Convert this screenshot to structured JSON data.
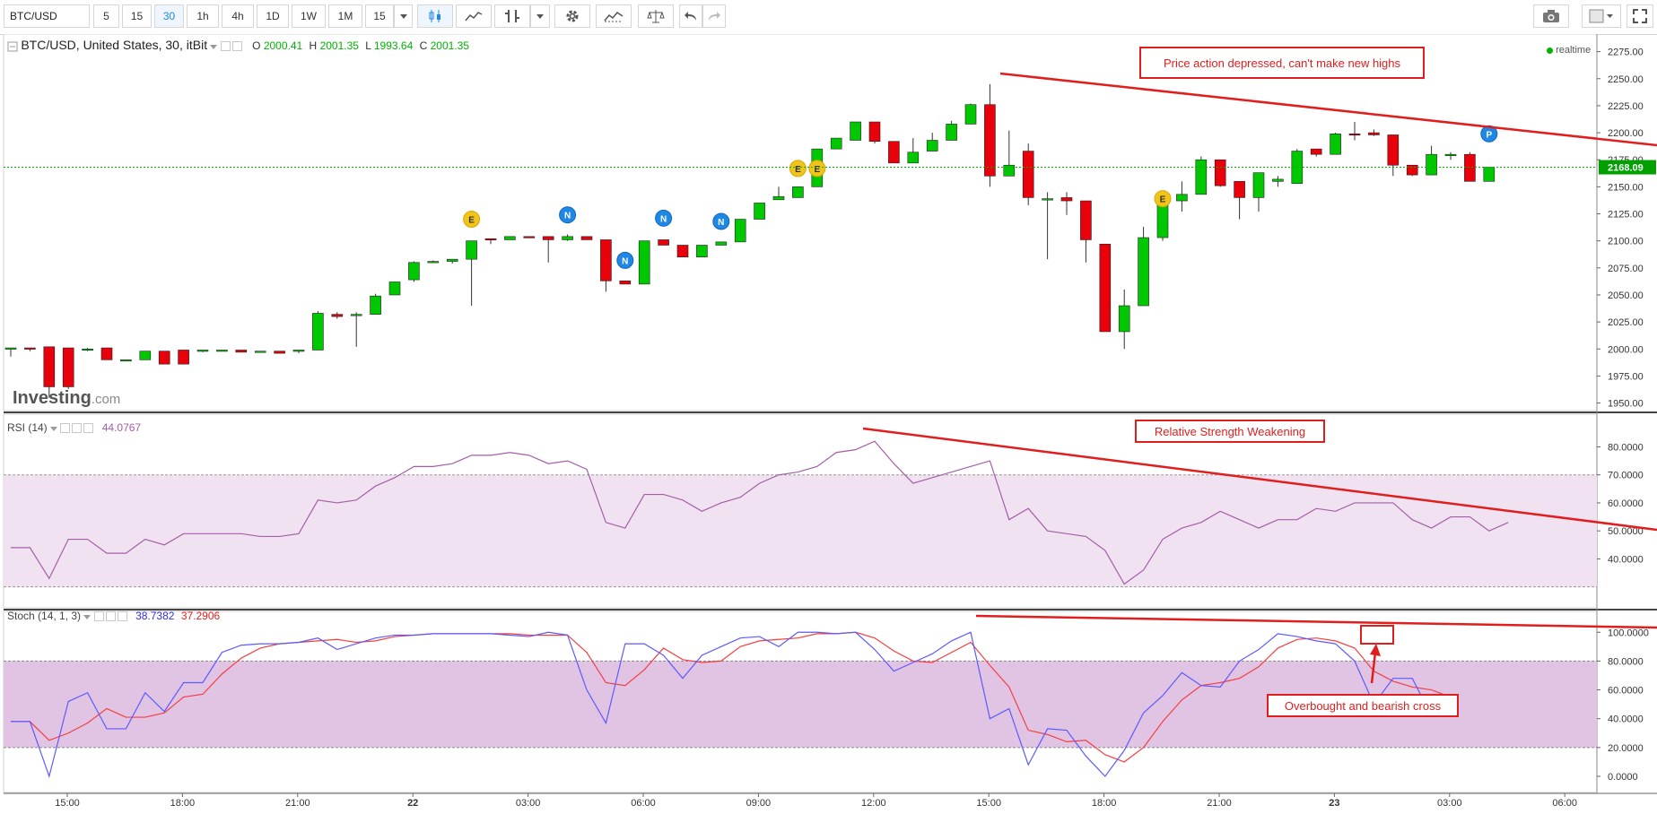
{
  "toolbar": {
    "symbol": "BTC/USD",
    "intervals": [
      "5",
      "15",
      "30",
      "1h",
      "4h",
      "1D",
      "1W",
      "1M",
      "15"
    ],
    "active_interval": "30"
  },
  "header": {
    "title": "BTC/USD, United States, 30, itBit",
    "o_label": "O",
    "o": "2000.41",
    "h_label": "H",
    "h": "2001.35",
    "l_label": "L",
    "l": "1993.64",
    "c_label": "C",
    "c": "2001.35",
    "realtime": "realtime",
    "brand_main": "Investing",
    "brand_suffix": ".com"
  },
  "rsi_legend": {
    "name": "RSI (14)",
    "value": "44.0767"
  },
  "stoch_legend": {
    "name": "Stoch (14, 1, 3)",
    "k": "38.7382",
    "d": "37.2906"
  },
  "annotations": {
    "price": "Price action depressed, can't make new highs",
    "rsi": "Relative Strength Weakening",
    "stoch": "Overbought and bearish cross"
  },
  "colors": {
    "up": "#00c800",
    "down": "#e8000b",
    "accent": "#e01e1e",
    "rsi_line": "#a45ea8",
    "stoch_k": "#5b5bff",
    "stoch_d": "#f24040"
  },
  "chart_data": {
    "type": "candlestick",
    "symbol": "BTC/USD",
    "interval": "30",
    "last_price": "2168.09",
    "x_ticks": [
      "15:00",
      "18:00",
      "21:00",
      "22",
      "03:00",
      "06:00",
      "09:00",
      "12:00",
      "15:00",
      "18:00",
      "21:00",
      "23",
      "03:00",
      "06:00"
    ],
    "price_ticks": [
      "2275.00",
      "2250.00",
      "2225.00",
      "2200.00",
      "2175.00",
      "2150.00",
      "2125.00",
      "2100.00",
      "2075.00",
      "2050.00",
      "2025.00",
      "2000.00",
      "1975.00",
      "1950.00"
    ],
    "price_range": [
      1943,
      2278
    ],
    "candles": [
      [
        2000,
        2001,
        1993,
        2001
      ],
      [
        2001,
        2001,
        1998,
        2000
      ],
      [
        2002,
        2002,
        1955,
        1965
      ],
      [
        2001,
        2001,
        1963,
        1965
      ],
      [
        2000,
        2001,
        1998,
        2000
      ],
      [
        2001,
        2001,
        1990,
        1990
      ],
      [
        1990,
        1990,
        1990,
        1990
      ],
      [
        1990,
        1998,
        1990,
        1998
      ],
      [
        1998,
        1998,
        1986,
        1986
      ],
      [
        1999,
        1999,
        1986,
        1986
      ],
      [
        1999,
        1999,
        1997,
        1999
      ],
      [
        1999,
        1999,
        1998,
        1999
      ],
      [
        1999,
        1999,
        1997,
        1997
      ],
      [
        1997,
        1998,
        1997,
        1998
      ],
      [
        1998,
        1998,
        1996,
        1996
      ],
      [
        1998,
        1998,
        1996,
        1999
      ],
      [
        1999,
        2035,
        1999,
        2033
      ],
      [
        2032,
        2034,
        2028,
        2030
      ],
      [
        2032,
        2034,
        2002,
        2032
      ],
      [
        2032,
        2051,
        2032,
        2049
      ],
      [
        2050,
        2062,
        2050,
        2062
      ],
      [
        2064,
        2081,
        2062,
        2080
      ],
      [
        2080,
        2082,
        2080,
        2081
      ],
      [
        2081,
        2083,
        2079,
        2083
      ],
      [
        2083,
        2100,
        2040,
        2100
      ],
      [
        2102,
        2102,
        2097,
        2101
      ],
      [
        2101,
        2104,
        2101,
        2104
      ],
      [
        2104,
        2104,
        2103,
        2103
      ],
      [
        2104,
        2104,
        2080,
        2101
      ],
      [
        2101,
        2106,
        2100,
        2104
      ],
      [
        2104,
        2104,
        2102,
        2101
      ],
      [
        2101,
        2101,
        2053,
        2063
      ],
      [
        2063,
        2063,
        2060,
        2060
      ],
      [
        2060,
        2100,
        2060,
        2100
      ],
      [
        2101,
        2101,
        2096,
        2096
      ],
      [
        2096,
        2096,
        2085,
        2085
      ],
      [
        2085,
        2096,
        2085,
        2096
      ],
      [
        2096,
        2099,
        2096,
        2099
      ],
      [
        2099,
        2120,
        2099,
        2120
      ],
      [
        2120,
        2135,
        2120,
        2135
      ],
      [
        2138,
        2150,
        2138,
        2141
      ],
      [
        2140,
        2150,
        2140,
        2150
      ],
      [
        2150,
        2185,
        2150,
        2185
      ],
      [
        2185,
        2195,
        2185,
        2195
      ],
      [
        2193,
        2210,
        2193,
        2210
      ],
      [
        2210,
        2210,
        2190,
        2192
      ],
      [
        2192,
        2192,
        2172,
        2172
      ],
      [
        2172,
        2195,
        2172,
        2182
      ],
      [
        2183,
        2200,
        2183,
        2193
      ],
      [
        2193,
        2211,
        2193,
        2208
      ],
      [
        2208,
        2227,
        2208,
        2226
      ],
      [
        2226,
        2245,
        2150,
        2160
      ],
      [
        2160,
        2202,
        2160,
        2170
      ],
      [
        2183,
        2190,
        2133,
        2140
      ],
      [
        2139,
        2145,
        2083,
        2139
      ],
      [
        2140,
        2145,
        2124,
        2137
      ],
      [
        2137,
        2137,
        2080,
        2101
      ],
      [
        2097,
        2097,
        2016,
        2016
      ],
      [
        2016,
        2055,
        2000,
        2040
      ],
      [
        2040,
        2113,
        2040,
        2103
      ],
      [
        2103,
        2143,
        2100,
        2137
      ],
      [
        2137,
        2155,
        2127,
        2143
      ],
      [
        2143,
        2178,
        2143,
        2175
      ],
      [
        2175,
        2175,
        2150,
        2151
      ],
      [
        2155,
        2155,
        2120,
        2140
      ],
      [
        2140,
        2163,
        2127,
        2163
      ],
      [
        2155,
        2160,
        2150,
        2157
      ],
      [
        2153,
        2185,
        2153,
        2183
      ],
      [
        2185,
        2185,
        2178,
        2180
      ],
      [
        2180,
        2200,
        2180,
        2199
      ],
      [
        2199,
        2210,
        2193,
        2198
      ],
      [
        2200,
        2203,
        2197,
        2198
      ],
      [
        2198,
        2198,
        2160,
        2170
      ],
      [
        2170,
        2170,
        2160,
        2161
      ],
      [
        2161,
        2188,
        2161,
        2180
      ],
      [
        2180,
        2182,
        2175,
        2180
      ],
      [
        2180,
        2182,
        2155,
        2155
      ],
      [
        2155,
        2168,
        2155,
        2168
      ]
    ],
    "event_markers": [
      {
        "label": "E",
        "candle": 24,
        "price": 2120
      },
      {
        "label": "N",
        "candle": 29,
        "price": 2124
      },
      {
        "label": "N",
        "candle": 32,
        "price": 2082
      },
      {
        "label": "N",
        "candle": 34,
        "price": 2121
      },
      {
        "label": "N",
        "candle": 37,
        "price": 2118
      },
      {
        "label": "E",
        "candle": 41,
        "price": 2167
      },
      {
        "label": "E",
        "candle": 42,
        "price": 2167
      },
      {
        "label": "E",
        "candle": 60,
        "price": 2139
      },
      {
        "label": "P",
        "candle": 77,
        "price": 2199
      }
    ],
    "rsi": {
      "name": "RSI (14)",
      "ticks": [
        "80.0000",
        "70.0000",
        "60.0000",
        "50.0000",
        "40.0000"
      ],
      "range": [
        27,
        84
      ],
      "overbought": 70,
      "oversold": 30,
      "values": [
        44,
        44,
        33,
        47,
        47,
        42,
        42,
        47,
        45,
        49,
        49,
        49,
        49,
        48,
        48,
        49,
        61,
        60,
        61,
        66,
        69,
        73,
        73,
        74,
        77,
        77,
        78,
        77,
        74,
        75,
        72,
        53,
        51,
        63,
        63,
        61,
        57,
        60,
        62,
        67,
        70,
        71,
        73,
        78,
        79,
        82,
        74,
        67,
        69,
        71,
        73,
        75,
        54,
        58,
        50,
        49,
        48,
        43,
        31,
        36,
        47,
        51,
        53,
        57,
        54,
        51,
        54,
        54,
        58,
        57,
        60,
        60,
        60,
        54,
        51,
        55,
        55,
        50,
        53
      ]
    },
    "stoch": {
      "name": "Stoch (14, 1, 3)",
      "ticks": [
        "100.0000",
        "80.0000",
        "60.0000",
        "40.0000",
        "20.0000",
        "0.0000"
      ],
      "range": [
        -5,
        107
      ],
      "overbought": 80,
      "oversold": 20,
      "k": [
        38,
        38,
        0,
        52,
        58,
        33,
        33,
        58,
        45,
        65,
        65,
        86,
        91,
        92,
        92,
        93,
        96,
        88,
        92,
        96,
        98,
        98,
        99,
        99,
        99,
        99,
        98,
        97,
        100,
        98,
        60,
        37,
        92,
        92,
        84,
        68,
        84,
        90,
        96,
        97,
        90,
        100,
        100,
        99,
        100,
        88,
        73,
        79,
        85,
        94,
        100,
        40,
        47,
        8,
        33,
        32,
        14,
        0,
        18,
        44,
        56,
        72,
        63,
        62,
        80,
        88,
        99,
        97,
        94,
        92,
        80,
        50,
        68,
        68,
        42,
        55
      ],
      "d": [
        38,
        38,
        25,
        30,
        37,
        47,
        41,
        41,
        44,
        55,
        57,
        71,
        82,
        89,
        92,
        93,
        94,
        95,
        93,
        94,
        97,
        98,
        99,
        99,
        99,
        99,
        99,
        98,
        98,
        98,
        86,
        65,
        63,
        74,
        89,
        81,
        79,
        80,
        90,
        94,
        95,
        96,
        99,
        99,
        100,
        96,
        87,
        80,
        79,
        86,
        93,
        77,
        62,
        32,
        29,
        24,
        25,
        15,
        10,
        20,
        38,
        53,
        63,
        65,
        68,
        76,
        89,
        95,
        96,
        94,
        89,
        73,
        66,
        62,
        60,
        55
      ]
    }
  }
}
